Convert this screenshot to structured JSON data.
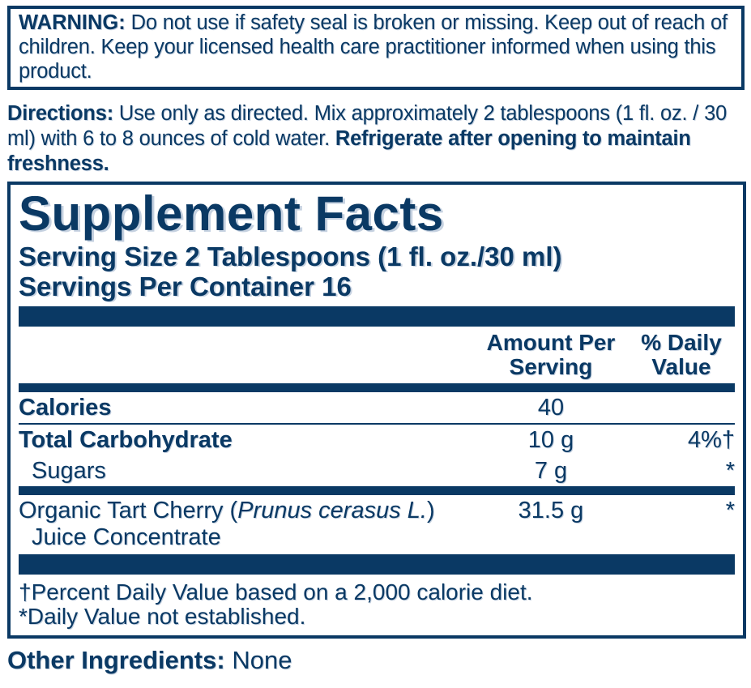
{
  "theme": {
    "navy": "#0a3964",
    "background": "#ffffff"
  },
  "warning": {
    "label": "WARNING:",
    "text": "Do not use if safety seal is broken or missing. Keep out of reach of children. Keep your licensed health care practitioner informed when using this product."
  },
  "directions": {
    "label": "Directions:",
    "text": "Use only as directed. Mix approximately 2 tablespoons (1 fl. oz. / 30 ml) with 6 to 8 ounces of cold water.",
    "emphasis": "Refrigerate after opening to maintain freshness."
  },
  "supplement_facts": {
    "title": "Supplement Facts",
    "serving_size": "Serving Size 2 Tablespoons (1 fl. oz./30 ml)",
    "servings_per_container": "Servings Per Container 16",
    "columns": {
      "amount": "Amount Per Serving",
      "daily": "% Daily Value"
    },
    "rows": {
      "0": {
        "name": "Calories",
        "amount": "40",
        "daily": ""
      },
      "1": {
        "name": "Total Carbohydrate",
        "amount": "10 g",
        "daily": "4%†"
      },
      "2": {
        "name": "Sugars",
        "amount": "7 g",
        "daily": "*"
      },
      "3": {
        "name_prefix": "Organic Tart Cherry (",
        "name_latin": "Prunus cerasus L.",
        "name_suffix": ")",
        "name_line2": "Juice Concentrate",
        "amount": "31.5 g",
        "daily": "*"
      }
    },
    "footnotes": {
      "0": "†Percent Daily Value based on a 2,000 calorie diet.",
      "1": "*Daily Value not established."
    }
  },
  "other_ingredients": {
    "label": "Other Ingredients:",
    "value": "None"
  }
}
